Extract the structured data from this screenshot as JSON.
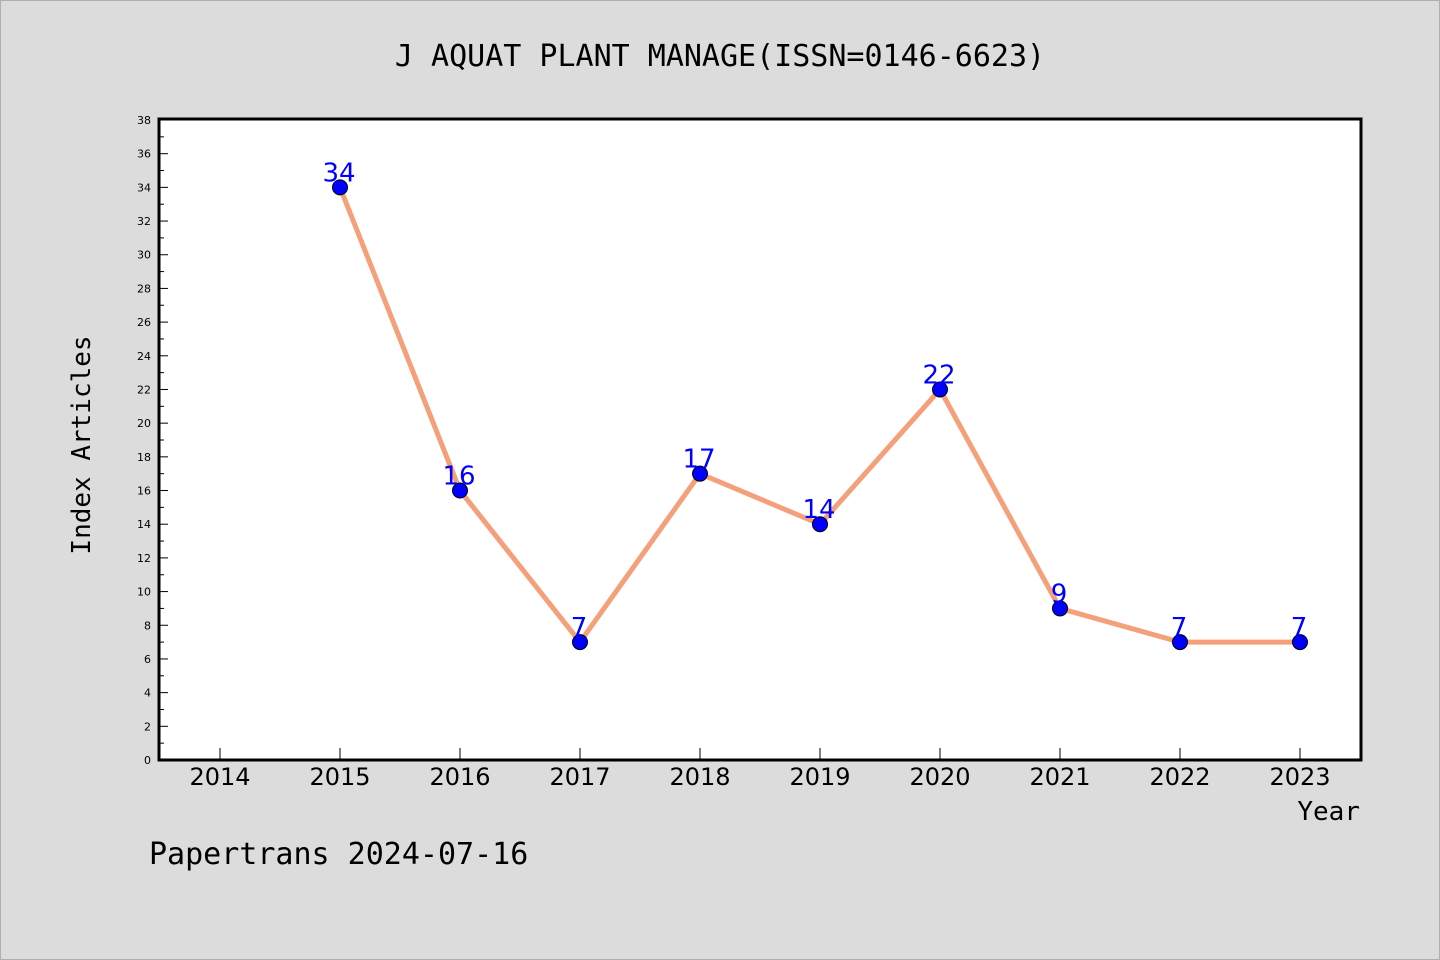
{
  "chart_data": {
    "type": "line",
    "title": "J AQUAT PLANT MANAGE(ISSN=0146-6623)",
    "xlabel": "Year",
    "ylabel": "Index Articles",
    "footer": "Papertrans 2024-07-16",
    "categories": [
      "2014",
      "2015",
      "2016",
      "2017",
      "2018",
      "2019",
      "2020",
      "2021",
      "2022",
      "2023"
    ],
    "x": [
      2015,
      2016,
      2017,
      2018,
      2019,
      2020,
      2021,
      2022,
      2023
    ],
    "values": [
      34,
      16,
      7,
      17,
      14,
      22,
      9,
      7,
      7
    ],
    "data_labels": [
      "34",
      "16",
      "7",
      "17",
      "14",
      "22",
      "9",
      "7",
      "7"
    ],
    "yticks": [
      "0",
      "2",
      "4",
      "6",
      "8",
      "10",
      "12",
      "14",
      "16",
      "18",
      "20",
      "22",
      "24",
      "26",
      "28",
      "30",
      "32",
      "34",
      "36",
      "38"
    ],
    "ylim": [
      0,
      38
    ],
    "grid": false,
    "legend": "none",
    "colors": {
      "line": "#f4a07a",
      "marker": "#0000ff",
      "label": "#0000ff",
      "background": "#dcdcdc",
      "plot_background": "#ffffff"
    }
  }
}
